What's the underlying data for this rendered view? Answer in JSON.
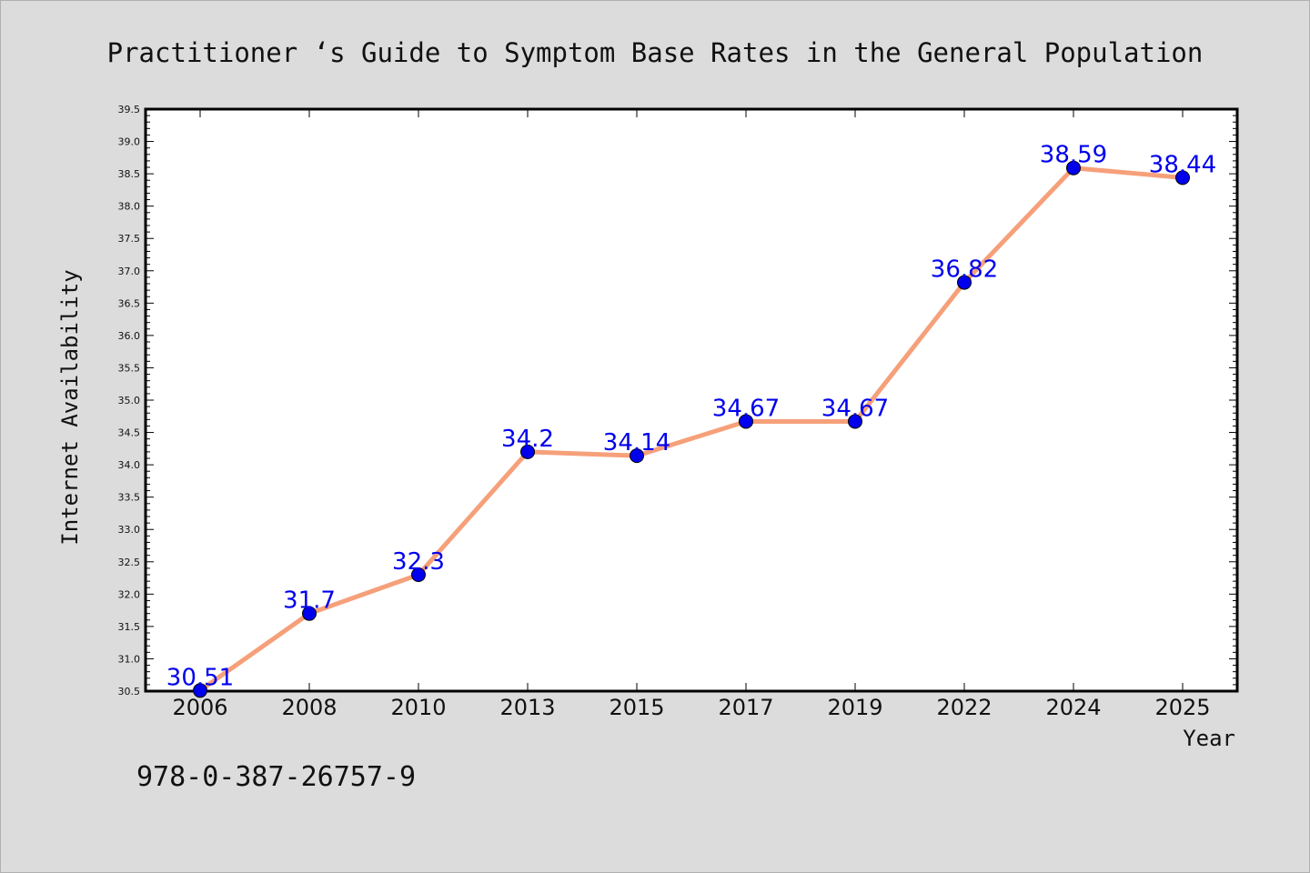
{
  "chart_data": {
    "type": "line",
    "title": "Practitioner ‘s Guide to Symptom Base Rates in the General Population",
    "xlabel": "Year",
    "ylabel": "Internet Availability",
    "categories": [
      "2006",
      "2008",
      "2010",
      "2013",
      "2015",
      "2017",
      "2019",
      "2022",
      "2024",
      "2025"
    ],
    "series": [
      {
        "values": [
          30.51,
          31.7,
          32.3,
          34.2,
          34.14,
          34.67,
          34.67,
          36.82,
          38.59,
          38.44
        ],
        "labels": [
          "30.51",
          "31.7",
          "32.3",
          "34.2",
          "34.14",
          "34.67",
          "34.67",
          "36.82",
          "38.59",
          "38.44"
        ],
        "line_color": "#f6a07a",
        "marker_color": "#0000ee"
      }
    ],
    "ylim": [
      30.5,
      39.5
    ],
    "yticks": [
      "30.5",
      "31.0",
      "31.5",
      "32.0",
      "32.5",
      "33.0",
      "33.5",
      "34.0",
      "34.5",
      "35.0",
      "35.5",
      "36.0",
      "36.5",
      "37.0",
      "37.5",
      "38.0",
      "38.5",
      "39.0",
      "39.5"
    ],
    "grid": false,
    "label_color": "#0000ee"
  },
  "footnote": "978-0-387-26757-9"
}
